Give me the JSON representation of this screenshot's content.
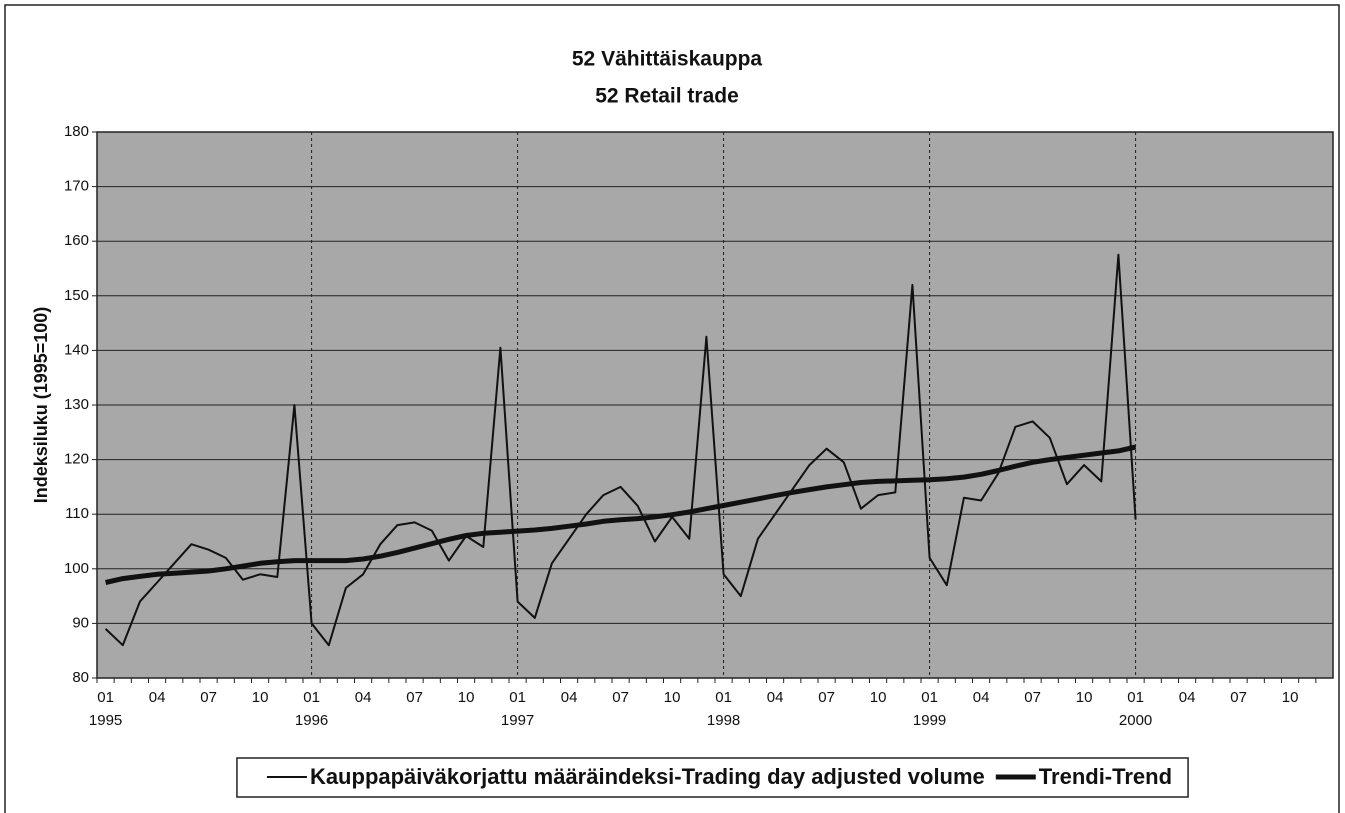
{
  "chart_data": {
    "type": "line",
    "title": "52 Vähittäiskauppa",
    "subtitle": "52 Retail trade",
    "y_label": "Indeksiluku (1995=100)",
    "categories": [
      "01",
      null,
      null,
      "04",
      null,
      null,
      "07",
      null,
      null,
      "10",
      null,
      null,
      "01",
      null,
      null,
      "04",
      null,
      null,
      "07",
      null,
      null,
      "10",
      null,
      null,
      "01",
      null,
      null,
      "04",
      null,
      null,
      "07",
      null,
      null,
      "10",
      null,
      null,
      "01",
      null,
      null,
      "04",
      null,
      null,
      "07",
      null,
      null,
      "10",
      null,
      null,
      "01",
      null,
      null,
      "04",
      null,
      null,
      "07",
      null,
      null,
      "10",
      null,
      null,
      "01",
      null,
      null,
      "04",
      null,
      null,
      "07",
      null,
      null,
      "10",
      null,
      null
    ],
    "category_years": [
      "1995",
      null,
      null,
      null,
      null,
      null,
      null,
      null,
      null,
      null,
      null,
      null,
      "1996",
      null,
      null,
      null,
      null,
      null,
      null,
      null,
      null,
      null,
      null,
      null,
      "1997",
      null,
      null,
      null,
      null,
      null,
      null,
      null,
      null,
      null,
      null,
      null,
      "1998",
      null,
      null,
      null,
      null,
      null,
      null,
      null,
      null,
      null,
      null,
      null,
      "1999",
      null,
      null,
      null,
      null,
      null,
      null,
      null,
      null,
      null,
      null,
      null,
      "2000",
      null,
      null,
      null,
      null,
      null,
      null,
      null,
      null,
      null,
      null,
      null
    ],
    "series": [
      {
        "name": "Kauppapäiväkorjattu määräindeksi-Trading day adjusted volume",
        "color": "#111111",
        "width": 2,
        "values": [
          89,
          86,
          94,
          97.5,
          101,
          104.5,
          103.5,
          102,
          98,
          99,
          98.5,
          130,
          90,
          86,
          96.5,
          99,
          104.5,
          108,
          108.5,
          107,
          101.5,
          106,
          104,
          140.5,
          94,
          91,
          101,
          105.5,
          110,
          113.5,
          115,
          111.5,
          105,
          109.5,
          105.5,
          142.5,
          99,
          95,
          105.5,
          110,
          114.5,
          119,
          122,
          119.5,
          111,
          113.5,
          114,
          152,
          102,
          97,
          113,
          112.5,
          117.5,
          126,
          127,
          124,
          115.5,
          119,
          116,
          157.5,
          109,
          null,
          null,
          null,
          null,
          null,
          null,
          null,
          null,
          null,
          null,
          null
        ]
      },
      {
        "name": "Trendi-Trend",
        "color": "#111111",
        "width": 5,
        "values": [
          97.5,
          98.2,
          98.6,
          99,
          99.2,
          99.4,
          99.6,
          100,
          100.5,
          101,
          101.3,
          101.5,
          101.5,
          101.5,
          101.5,
          101.8,
          102.3,
          103,
          103.8,
          104.6,
          105.4,
          106.1,
          106.5,
          106.7,
          106.9,
          107.1,
          107.4,
          107.8,
          108.2,
          108.7,
          109,
          109.2,
          109.5,
          109.9,
          110.4,
          111,
          111.6,
          112.2,
          112.8,
          113.4,
          114,
          114.5,
          115,
          115.4,
          115.8,
          116,
          116.1,
          116.2,
          116.3,
          116.5,
          116.8,
          117.3,
          118,
          118.8,
          119.5,
          120,
          120.4,
          120.8,
          121.2,
          121.6,
          122.3,
          null,
          null,
          null,
          null,
          null,
          null,
          null,
          null,
          null,
          null,
          null
        ]
      }
    ],
    "ylim": [
      80,
      180
    ],
    "yticks": [
      80,
      90,
      100,
      110,
      120,
      130,
      140,
      150,
      160,
      170,
      180
    ],
    "grid": true,
    "plot_background": "#a8a8a8",
    "legend": "bottom"
  }
}
